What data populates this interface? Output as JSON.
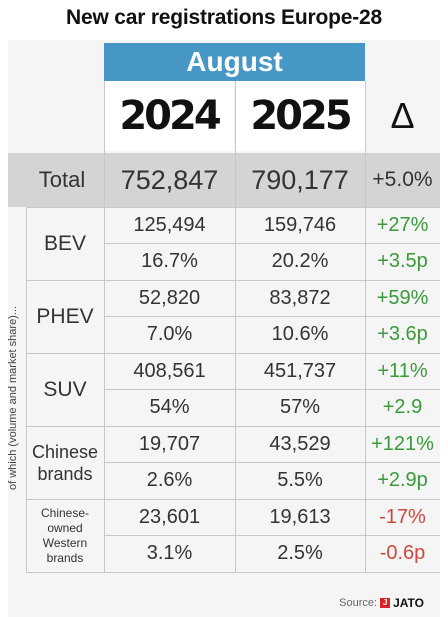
{
  "title": "New car registrations Europe-28",
  "header": {
    "month": "August",
    "years": [
      "2024",
      "2025"
    ],
    "delta_symbol": "Δ"
  },
  "side_label": "of which (volume and market share)...",
  "rows": [
    {
      "label": "Total",
      "lines": [
        {
          "v2024": "752,847",
          "v2025": "790,177",
          "delta": "+5.0%",
          "dir": "pos"
        }
      ]
    },
    {
      "label": "BEV",
      "lines": [
        {
          "v2024": "125,494",
          "v2025": "159,746",
          "delta": "+27%",
          "dir": "pos"
        },
        {
          "v2024": "16.7%",
          "v2025": "20.2%",
          "delta": "+3.5p",
          "dir": "pos"
        }
      ]
    },
    {
      "label": "PHEV",
      "lines": [
        {
          "v2024": "52,820",
          "v2025": "83,872",
          "delta": "+59%",
          "dir": "pos"
        },
        {
          "v2024": "7.0%",
          "v2025": "10.6%",
          "delta": "+3.6p",
          "dir": "pos"
        }
      ]
    },
    {
      "label": "SUV",
      "lines": [
        {
          "v2024": "408,561",
          "v2025": "451,737",
          "delta": "+11%",
          "dir": "pos"
        },
        {
          "v2024": "54%",
          "v2025": "57%",
          "delta": "+2.9",
          "dir": "pos"
        }
      ]
    },
    {
      "label": "Chinese brands",
      "lines": [
        {
          "v2024": "19,707",
          "v2025": "43,529",
          "delta": "+121%",
          "dir": "pos"
        },
        {
          "v2024": "2.6%",
          "v2025": "5.5%",
          "delta": "+2.9p",
          "dir": "pos"
        }
      ]
    },
    {
      "label": "Chinese-owned Western brands",
      "lines": [
        {
          "v2024": "23,601",
          "v2025": "19,613",
          "delta": "-17%",
          "dir": "neg"
        },
        {
          "v2024": "3.1%",
          "v2025": "2.5%",
          "delta": "-0.6p",
          "dir": "neg"
        }
      ]
    }
  ],
  "source": {
    "prefix": "Source:",
    "logo_mark": "J",
    "logo_text": "JATO"
  },
  "colors": {
    "header_blue": "#4797c6",
    "positive": "#3a9a3a",
    "negative": "#d0483d",
    "total_row_bg": "#d4d4d4",
    "table_bg": "#f5f5f5"
  },
  "chart_data": {
    "type": "table",
    "title": "New car registrations Europe-28",
    "subtitle": "August",
    "columns": [
      "2024",
      "2025",
      "Δ"
    ],
    "rows": [
      {
        "category": "Total",
        "metric": "volume",
        "2024": 752847,
        "2025": 790177,
        "delta": "+5.0%"
      },
      {
        "category": "BEV",
        "metric": "volume",
        "2024": 125494,
        "2025": 159746,
        "delta": "+27%"
      },
      {
        "category": "BEV",
        "metric": "share",
        "2024": 16.7,
        "2025": 20.2,
        "delta": "+3.5p"
      },
      {
        "category": "PHEV",
        "metric": "volume",
        "2024": 52820,
        "2025": 83872,
        "delta": "+59%"
      },
      {
        "category": "PHEV",
        "metric": "share",
        "2024": 7.0,
        "2025": 10.6,
        "delta": "+3.6p"
      },
      {
        "category": "SUV",
        "metric": "volume",
        "2024": 408561,
        "2025": 451737,
        "delta": "+11%"
      },
      {
        "category": "SUV",
        "metric": "share",
        "2024": 54,
        "2025": 57,
        "delta": "+2.9"
      },
      {
        "category": "Chinese brands",
        "metric": "volume",
        "2024": 19707,
        "2025": 43529,
        "delta": "+121%"
      },
      {
        "category": "Chinese brands",
        "metric": "share",
        "2024": 2.6,
        "2025": 5.5,
        "delta": "+2.9p"
      },
      {
        "category": "Chinese-owned Western brands",
        "metric": "volume",
        "2024": 23601,
        "2025": 19613,
        "delta": "-17%"
      },
      {
        "category": "Chinese-owned Western brands",
        "metric": "share",
        "2024": 3.1,
        "2025": 2.5,
        "delta": "-0.6p"
      }
    ]
  }
}
